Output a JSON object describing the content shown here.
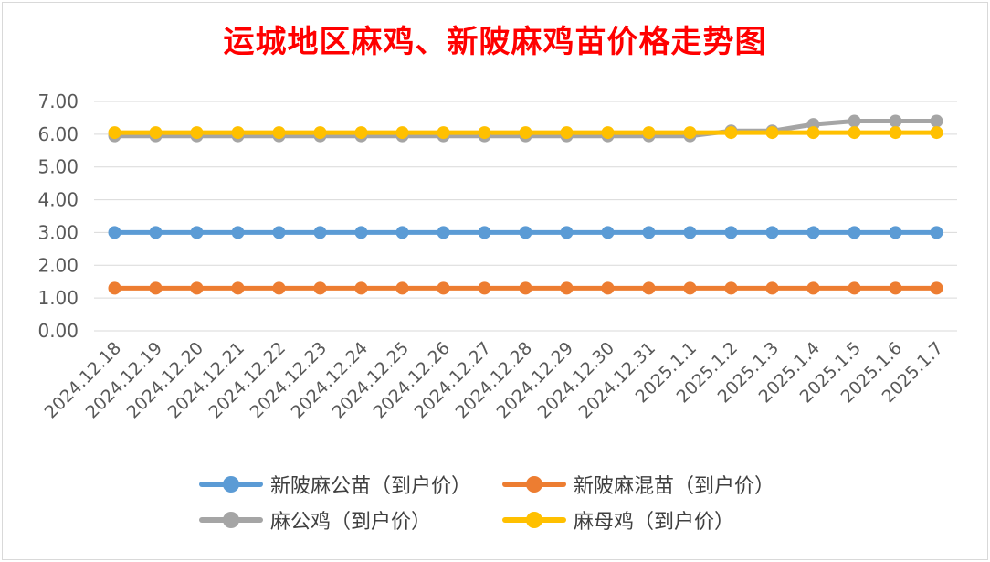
{
  "chart_data": {
    "type": "line",
    "title": "运城地区麻鸡、新陂麻鸡苗价格走势图",
    "categories": [
      "2024.12.18",
      "2024.12.19",
      "2024.12.20",
      "2024.12.21",
      "2024.12.22",
      "2024.12.23",
      "2024.12.24",
      "2024.12.25",
      "2024.12.26",
      "2024.12.27",
      "2024.12.28",
      "2024.12.29",
      "2024.12.30",
      "2024.12.31",
      "2025.1.1",
      "2025.1.2",
      "2025.1.3",
      "2025.1.4",
      "2025.1.5",
      "2025.1.6",
      "2025.1.7"
    ],
    "y_ticks": [
      "0.00",
      "1.00",
      "2.00",
      "3.00",
      "4.00",
      "5.00",
      "6.00",
      "7.00"
    ],
    "ylim": [
      0,
      7
    ],
    "grid": true,
    "legend_position": "bottom",
    "series": [
      {
        "name": "新陂麻公苗（到户价）",
        "color": "#5b9bd5",
        "values": [
          3,
          3,
          3,
          3,
          3,
          3,
          3,
          3,
          3,
          3,
          3,
          3,
          3,
          3,
          3,
          3,
          3,
          3,
          3,
          3,
          3
        ]
      },
      {
        "name": "新陂麻混苗（到户价）",
        "color": "#ed7d31",
        "values": [
          1.3,
          1.3,
          1.3,
          1.3,
          1.3,
          1.3,
          1.3,
          1.3,
          1.3,
          1.3,
          1.3,
          1.3,
          1.3,
          1.3,
          1.3,
          1.3,
          1.3,
          1.3,
          1.3,
          1.3,
          1.3
        ]
      },
      {
        "name": "麻公鸡（到户价）",
        "color": "#a5a5a5",
        "values": [
          5.95,
          5.95,
          5.95,
          5.95,
          5.95,
          5.95,
          5.95,
          5.95,
          5.95,
          5.95,
          5.95,
          5.95,
          5.95,
          5.95,
          5.95,
          6.1,
          6.1,
          6.3,
          6.4,
          6.4,
          6.4
        ]
      },
      {
        "name": "麻母鸡（到户价）",
        "color": "#ffc000",
        "values": [
          6.05,
          6.05,
          6.05,
          6.05,
          6.05,
          6.05,
          6.05,
          6.05,
          6.05,
          6.05,
          6.05,
          6.05,
          6.05,
          6.05,
          6.05,
          6.05,
          6.05,
          6.05,
          6.05,
          6.05,
          6.05
        ]
      }
    ]
  }
}
